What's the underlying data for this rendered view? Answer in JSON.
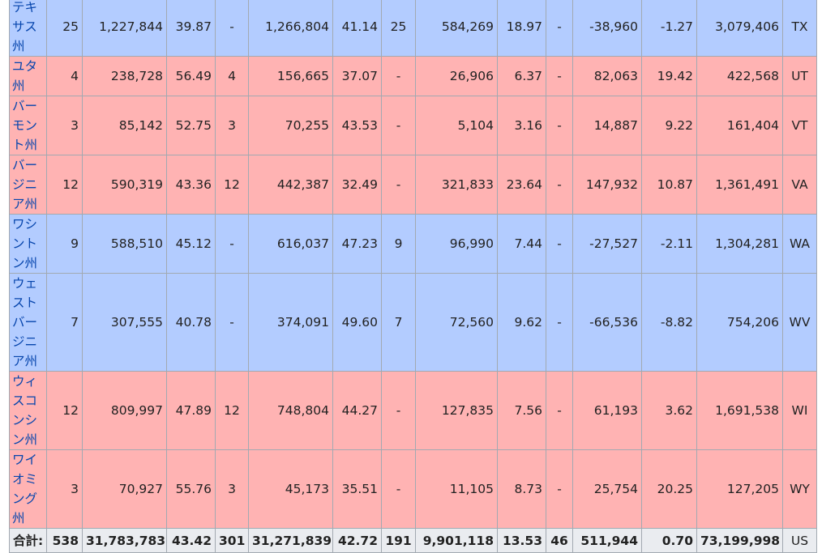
{
  "colors": {
    "republican": "#ffb3b3",
    "democrat": "#b3ccff",
    "total_row": "#eaecf0",
    "link": "#0645ad",
    "border": "#a2a9b1"
  },
  "rows": [
    {
      "state": "テキサス州",
      "party": "b",
      "ev_r": "25",
      "votes_r": "1,227,844",
      "pct_r": "39.87",
      "ev_d": "-",
      "votes_d": "1,266,804",
      "pct_d": "41.14",
      "ev_o": "25",
      "votes_o": "584,269",
      "pct_o": "18.97",
      "ev_x": "-",
      "margin": "-38,960",
      "margin_pct": "-1.27",
      "total": "3,079,406",
      "abbr": "TX"
    },
    {
      "state": "ユタ州",
      "party": "r",
      "ev_r": "4",
      "votes_r": "238,728",
      "pct_r": "56.49",
      "ev_d": "4",
      "votes_d": "156,665",
      "pct_d": "37.07",
      "ev_o": "-",
      "votes_o": "26,906",
      "pct_o": "6.37",
      "ev_x": "-",
      "margin": "82,063",
      "margin_pct": "19.42",
      "total": "422,568",
      "abbr": "UT"
    },
    {
      "state": "バーモント州",
      "party": "r",
      "ev_r": "3",
      "votes_r": "85,142",
      "pct_r": "52.75",
      "ev_d": "3",
      "votes_d": "70,255",
      "pct_d": "43.53",
      "ev_o": "-",
      "votes_o": "5,104",
      "pct_o": "3.16",
      "ev_x": "-",
      "margin": "14,887",
      "margin_pct": "9.22",
      "total": "161,404",
      "abbr": "VT"
    },
    {
      "state": "バージニア州",
      "party": "r",
      "ev_r": "12",
      "votes_r": "590,319",
      "pct_r": "43.36",
      "ev_d": "12",
      "votes_d": "442,387",
      "pct_d": "32.49",
      "ev_o": "-",
      "votes_o": "321,833",
      "pct_o": "23.64",
      "ev_x": "-",
      "margin": "147,932",
      "margin_pct": "10.87",
      "total": "1,361,491",
      "abbr": "VA"
    },
    {
      "state": "ワシントン州",
      "party": "b",
      "ev_r": "9",
      "votes_r": "588,510",
      "pct_r": "45.12",
      "ev_d": "-",
      "votes_d": "616,037",
      "pct_d": "47.23",
      "ev_o": "9",
      "votes_o": "96,990",
      "pct_o": "7.44",
      "ev_x": "-",
      "margin": "-27,527",
      "margin_pct": "-2.11",
      "total": "1,304,281",
      "abbr": "WA"
    },
    {
      "state": "ウェストバージニア州",
      "party": "b",
      "ev_r": "7",
      "votes_r": "307,555",
      "pct_r": "40.78",
      "ev_d": "-",
      "votes_d": "374,091",
      "pct_d": "49.60",
      "ev_o": "7",
      "votes_o": "72,560",
      "pct_o": "9.62",
      "ev_x": "-",
      "margin": "-66,536",
      "margin_pct": "-8.82",
      "total": "754,206",
      "abbr": "WV"
    },
    {
      "state": "ウィスコンシン州",
      "party": "r",
      "ev_r": "12",
      "votes_r": "809,997",
      "pct_r": "47.89",
      "ev_d": "12",
      "votes_d": "748,804",
      "pct_d": "44.27",
      "ev_o": "-",
      "votes_o": "127,835",
      "pct_o": "7.56",
      "ev_x": "-",
      "margin": "61,193",
      "margin_pct": "3.62",
      "total": "1,691,538",
      "abbr": "WI"
    },
    {
      "state": "ワイオミング州",
      "party": "r",
      "ev_r": "3",
      "votes_r": "70,927",
      "pct_r": "55.76",
      "ev_d": "3",
      "votes_d": "45,173",
      "pct_d": "35.51",
      "ev_o": "-",
      "votes_o": "11,105",
      "pct_o": "8.73",
      "ev_x": "-",
      "margin": "25,754",
      "margin_pct": "20.25",
      "total": "127,205",
      "abbr": "WY"
    }
  ],
  "totals": {
    "label": "合計:",
    "ev_r": "538",
    "votes_r": "31,783,783",
    "pct_r": "43.42",
    "ev_d": "301",
    "votes_d": "31,271,839",
    "pct_d": "42.72",
    "ev_o": "191",
    "votes_o": "9,901,118",
    "pct_o": "13.53",
    "ev_x": "46",
    "margin": "511,944",
    "margin_pct": "0.70",
    "total": "73,199,998",
    "abbr": "US"
  }
}
